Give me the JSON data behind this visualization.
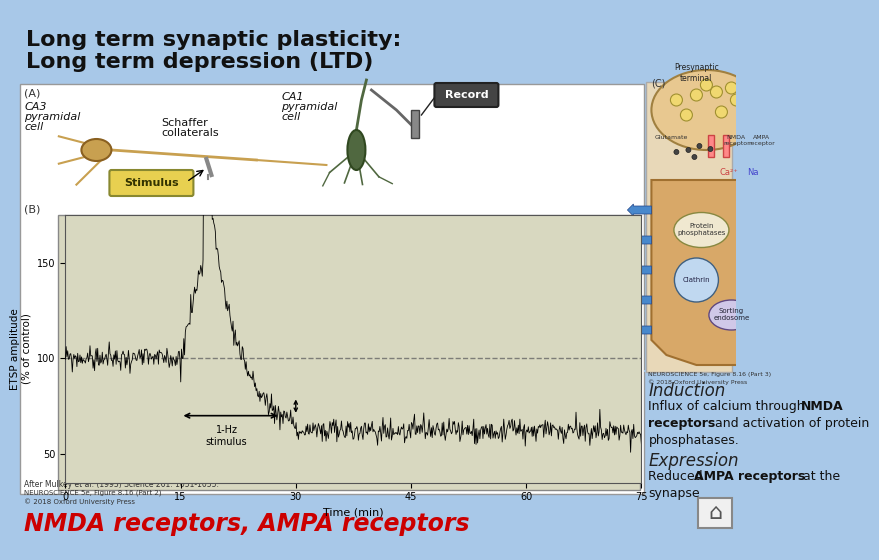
{
  "bg_color": "#a8c8e8",
  "title_line1": "Long term synaptic plasticity:",
  "title_line2": "Long term depression (LTD)",
  "title_color": "#111111",
  "induction_label": "Induction",
  "expression_label": "Expression",
  "bottom_text": "NMDA receptors, AMPA receptors",
  "bottom_color": "#cc0000",
  "citation1": "After Mulkey et al. (1993) Science 261: 1051-1055.",
  "citation2": "NEUROSCIENCE 5e, Figure 8.16 (Part 2)",
  "citation3": "© 2018 Oxford University Press",
  "left_bg": "#ffffff",
  "graph_bg": "#d8d8c0",
  "stimulus_box_color": "#e8c840",
  "record_box_color": "#444444",
  "neuron_body_color": "#c8a050",
  "neuron_line_color": "#c8a050",
  "ca1_color": "#506840",
  "right_panel_citation1": "NEUROSCIENCE 5e, Figure 8.16 (Part 3)",
  "right_panel_citation2": "© 2018 Oxford University Press",
  "spine_color": "#d8a878",
  "membrane_color": "#c8a060",
  "receptor_color": "#6080c0"
}
